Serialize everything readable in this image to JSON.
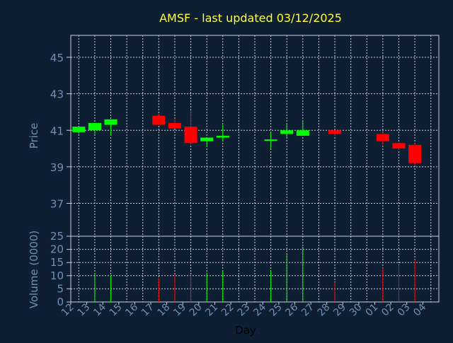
{
  "title": "AMSF - last updated 03/12/2025",
  "colors": {
    "background": "#0f1f33",
    "up": "#00ff00",
    "down": "#ff0000",
    "title": "#ffff33",
    "axis_text": "#6f8fb8",
    "grid": "#c8d0d8"
  },
  "chart_data": [
    {
      "type": "candlestick",
      "title": "AMSF - last updated 03/12/2025",
      "ylabel": "Price",
      "xlabel": "",
      "ylim": [
        35.2,
        46.2
      ],
      "yticks": [
        37,
        39,
        41,
        43,
        45
      ],
      "grid": true,
      "candles": [
        {
          "day": "12",
          "open": 40.9,
          "high": 41.2,
          "low": 40.8,
          "close": 41.2
        },
        {
          "day": "13",
          "open": 41.0,
          "high": 41.4,
          "low": 40.8,
          "close": 41.4
        },
        {
          "day": "14",
          "open": 41.3,
          "high": 41.6,
          "low": 40.7,
          "close": 41.6
        },
        {
          "day": "17",
          "open": 41.8,
          "high": 41.9,
          "low": 41.3,
          "close": 41.3
        },
        {
          "day": "18",
          "open": 41.4,
          "high": 41.6,
          "low": 41.1,
          "close": 41.1
        },
        {
          "day": "19",
          "open": 41.2,
          "high": 42.1,
          "low": 40.2,
          "close": 40.3
        },
        {
          "day": "20",
          "open": 40.4,
          "high": 40.6,
          "low": 40.1,
          "close": 40.6
        },
        {
          "day": "21",
          "open": 40.6,
          "high": 41.3,
          "low": 40.4,
          "close": 40.7
        },
        {
          "day": "24",
          "open": 40.5,
          "high": 40.9,
          "low": 40.0,
          "close": 40.5
        },
        {
          "day": "25",
          "open": 40.8,
          "high": 41.4,
          "low": 40.6,
          "close": 41.0
        },
        {
          "day": "26",
          "open": 40.7,
          "high": 41.5,
          "low": 40.7,
          "close": 41.0
        },
        {
          "day": "28",
          "open": 41.0,
          "high": 41.0,
          "low": 40.7,
          "close": 40.8
        },
        {
          "day": "01",
          "open": 40.8,
          "high": 40.9,
          "low": 40.2,
          "close": 40.4
        },
        {
          "day": "02",
          "open": 40.3,
          "high": 40.3,
          "low": 39.9,
          "close": 40.0
        },
        {
          "day": "03",
          "open": 40.2,
          "high": 40.3,
          "low": 39.1,
          "close": 39.2
        }
      ]
    },
    {
      "type": "bar",
      "ylabel": "Volume (0000)",
      "xlabel": "Day",
      "ylim": [
        0,
        25
      ],
      "yticks": [
        0,
        5,
        10,
        15,
        20,
        25
      ],
      "grid": true,
      "categories": [
        "12",
        "13",
        "14",
        "15",
        "16",
        "17",
        "18",
        "19",
        "20",
        "21",
        "22",
        "23",
        "24",
        "25",
        "26",
        "27",
        "28",
        "29",
        "30",
        "01",
        "02",
        "03",
        "04"
      ],
      "values": [
        0,
        11,
        10,
        0,
        0,
        9,
        10.5,
        10,
        11,
        12,
        0,
        0,
        12,
        18,
        21,
        0,
        7.5,
        0,
        0,
        13,
        14,
        16,
        0
      ],
      "direction": [
        "",
        "up",
        "up",
        "",
        "",
        "down",
        "down",
        "down",
        "up",
        "up",
        "",
        "",
        "up",
        "up",
        "up",
        "",
        "down",
        "",
        "",
        "down",
        "down",
        "down",
        ""
      ]
    }
  ]
}
